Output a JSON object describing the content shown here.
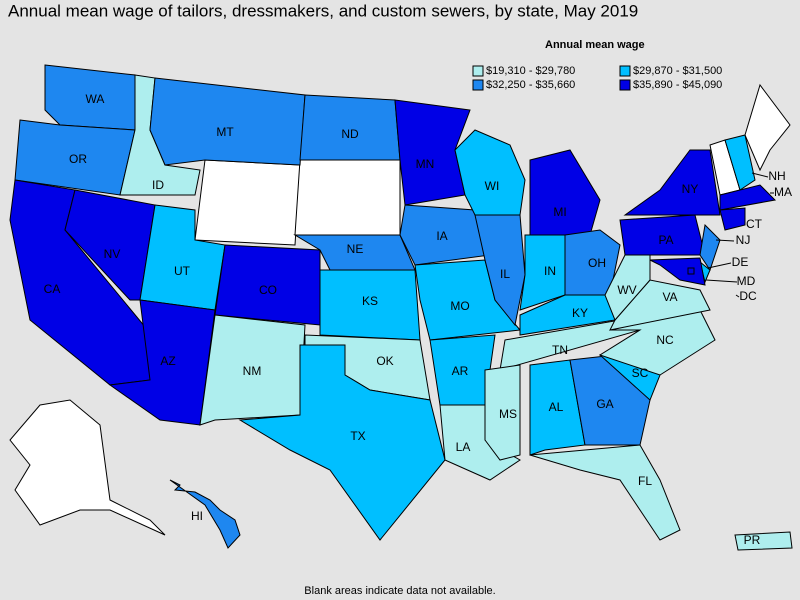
{
  "header": {
    "title": "Annual mean wage of tailors, dressmakers, and custom sewers, by state, May 2019"
  },
  "legend": {
    "title": "Annual mean wage",
    "items": [
      {
        "label": "$19,310 - $29,780",
        "color": "#aeeeee"
      },
      {
        "label": "$29,870 - $31,500",
        "color": "#00bfff"
      },
      {
        "label": "$32,250 - $35,660",
        "color": "#1e87f0"
      },
      {
        "label": "$35,890 - $45,090",
        "color": "#0000e6"
      }
    ]
  },
  "states": [
    {
      "label": "WA",
      "bin": 2
    },
    {
      "label": "OR",
      "bin": 2
    },
    {
      "label": "CA",
      "bin": 3
    },
    {
      "label": "NV",
      "bin": 3
    },
    {
      "label": "ID",
      "bin": 0
    },
    {
      "label": "MT",
      "bin": 2
    },
    {
      "label": "UT",
      "bin": 1
    },
    {
      "label": "AZ",
      "bin": 3
    },
    {
      "label": "CO",
      "bin": 3
    },
    {
      "label": "NM",
      "bin": 0
    },
    {
      "label": "ND",
      "bin": 2
    },
    {
      "label": "NE",
      "bin": 2
    },
    {
      "label": "KS",
      "bin": 1
    },
    {
      "label": "OK",
      "bin": 0
    },
    {
      "label": "TX",
      "bin": 1
    },
    {
      "label": "MN",
      "bin": 3
    },
    {
      "label": "IA",
      "bin": 2
    },
    {
      "label": "MO",
      "bin": 1
    },
    {
      "label": "AR",
      "bin": 1
    },
    {
      "label": "LA",
      "bin": 0
    },
    {
      "label": "WI",
      "bin": 1
    },
    {
      "label": "IL",
      "bin": 2
    },
    {
      "label": "MI",
      "bin": 3
    },
    {
      "label": "IN",
      "bin": 1
    },
    {
      "label": "OH",
      "bin": 2
    },
    {
      "label": "KY",
      "bin": 1
    },
    {
      "label": "TN",
      "bin": 0
    },
    {
      "label": "MS",
      "bin": 0
    },
    {
      "label": "AL",
      "bin": 1
    },
    {
      "label": "GA",
      "bin": 2
    },
    {
      "label": "FL",
      "bin": 0
    },
    {
      "label": "SC",
      "bin": 1
    },
    {
      "label": "NC",
      "bin": 0
    },
    {
      "label": "VA",
      "bin": 0
    },
    {
      "label": "WV",
      "bin": 0
    },
    {
      "label": "PA",
      "bin": 3
    },
    {
      "label": "NY",
      "bin": 3
    },
    {
      "label": "NJ",
      "bin": 2
    },
    {
      "label": "DE",
      "bin": 1
    },
    {
      "label": "MD",
      "bin": 3
    },
    {
      "label": "NH",
      "bin": 1
    },
    {
      "label": "MA",
      "bin": 3
    },
    {
      "label": "CT",
      "bin": 3
    },
    {
      "label": "HI",
      "bin": 2
    },
    {
      "label": "PR",
      "bin": 0
    },
    {
      "label": "DC",
      "bin": 3
    }
  ],
  "footnote": "Blank areas indicate data not available."
}
